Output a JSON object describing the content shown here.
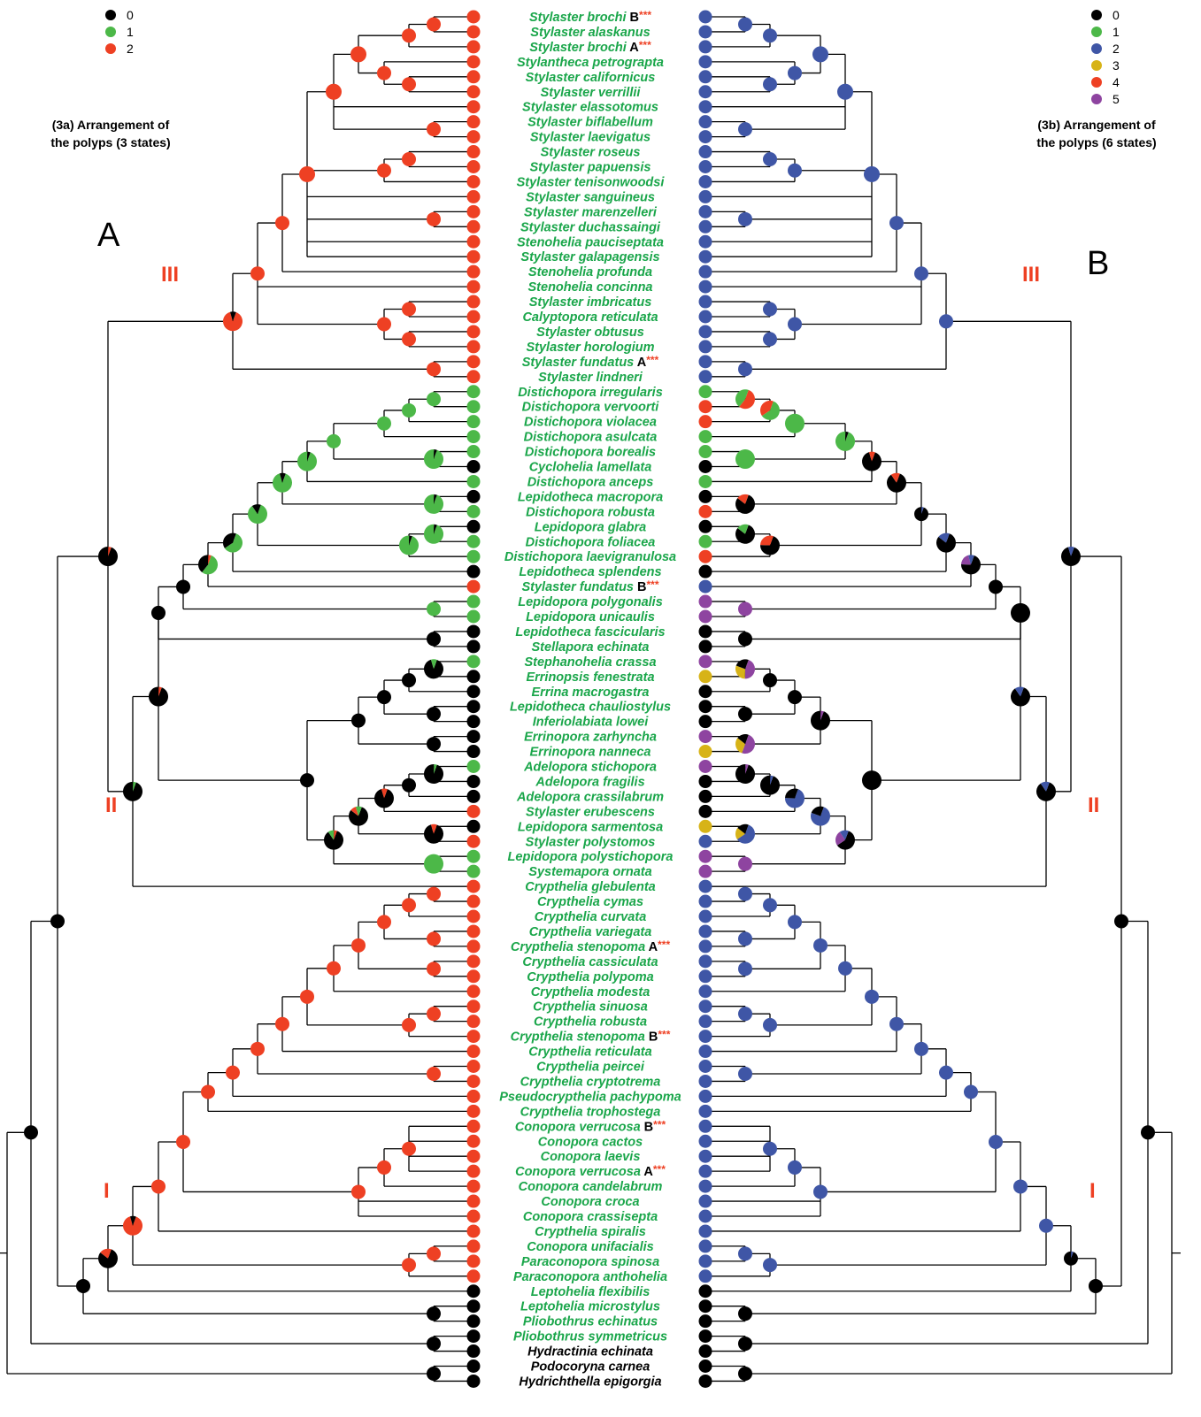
{
  "state_colors": {
    "0": "#000000",
    "1": "#4cb848",
    "2": "#ee4023",
    "3b": "#3f56a6",
    "3": "#d7b317",
    "4": "#ee4023",
    "5": "#8e44a0"
  },
  "left_panel": {
    "letter": "A",
    "caption_line1": "(3a) Arrangement of",
    "caption_line2": "the polyps (3 states)",
    "legend": [
      {
        "label": "0",
        "color": "#000000"
      },
      {
        "label": "1",
        "color": "#4cb848"
      },
      {
        "label": "2",
        "color": "#ee4023"
      }
    ],
    "clade_labels": [
      "III",
      "II",
      "I"
    ]
  },
  "right_panel": {
    "letter": "B",
    "caption_line1": "(3b) Arrangement of",
    "caption_line2": "the polyps (6 states)",
    "legend": [
      {
        "label": "0",
        "color": "#000000"
      },
      {
        "label": "1",
        "color": "#4cb848"
      },
      {
        "label": "2",
        "color": "#3f56a6"
      },
      {
        "label": "3",
        "color": "#d7b317"
      },
      {
        "label": "4",
        "color": "#ee4023"
      },
      {
        "label": "5",
        "color": "#8e44a0"
      }
    ],
    "clade_labels": [
      "III",
      "II",
      "I"
    ]
  },
  "taxa": [
    {
      "name": "Stylaster brochi",
      "suffix": "B",
      "stars": "***",
      "left": 2,
      "right": 2,
      "green": true
    },
    {
      "name": "Stylaster alaskanus",
      "left": 2,
      "right": 2,
      "green": true
    },
    {
      "name": "Stylaster brochi",
      "suffix": "A",
      "stars": "***",
      "left": 2,
      "right": 2,
      "green": true
    },
    {
      "name": "Stylantheca petrograpta",
      "left": 2,
      "right": 2,
      "green": true
    },
    {
      "name": "Stylaster californicus",
      "left": 2,
      "right": 2,
      "green": true
    },
    {
      "name": "Stylaster verrillii",
      "left": 2,
      "right": 2,
      "green": true
    },
    {
      "name": "Stylaster elassotomus",
      "left": 2,
      "right": 2,
      "green": true
    },
    {
      "name": "Stylaster biflabellum",
      "left": 2,
      "right": 2,
      "green": true
    },
    {
      "name": "Stylaster laevigatus",
      "left": 2,
      "right": 2,
      "green": true
    },
    {
      "name": "Stylaster roseus",
      "left": 2,
      "right": 2,
      "green": true
    },
    {
      "name": "Stylaster papuensis",
      "left": 2,
      "right": 2,
      "green": true
    },
    {
      "name": "Stylaster tenisonwoodsi",
      "left": 2,
      "right": 2,
      "green": true
    },
    {
      "name": "Stylaster sanguineus",
      "left": 2,
      "right": 2,
      "green": true
    },
    {
      "name": "Stylaster marenzelleri",
      "left": 2,
      "right": 2,
      "green": true
    },
    {
      "name": "Stylaster duchassaingi",
      "left": 2,
      "right": 2,
      "green": true
    },
    {
      "name": "Stenohelia pauciseptata",
      "left": 2,
      "right": 2,
      "green": true
    },
    {
      "name": "Stylaster galapagensis",
      "left": 2,
      "right": 2,
      "green": true
    },
    {
      "name": "Stenohelia profunda",
      "left": 2,
      "right": 2,
      "green": true
    },
    {
      "name": "Stenohelia concinna",
      "left": 2,
      "right": 2,
      "green": true
    },
    {
      "name": "Stylaster imbricatus",
      "left": 2,
      "right": 2,
      "green": true
    },
    {
      "name": "Calyptopora reticulata",
      "left": 2,
      "right": 2,
      "green": true
    },
    {
      "name": "Stylaster obtusus",
      "left": 2,
      "right": 2,
      "green": true
    },
    {
      "name": "Stylaster horologium",
      "left": 2,
      "right": 2,
      "green": true
    },
    {
      "name": "Stylaster fundatus",
      "suffix": "A",
      "stars": "***",
      "left": 2,
      "right": 2,
      "green": true
    },
    {
      "name": "Stylaster lindneri",
      "left": 2,
      "right": 2,
      "green": true
    },
    {
      "name": "Distichopora irregularis",
      "left": 1,
      "right": 1,
      "green": true
    },
    {
      "name": "Distichopora vervoorti",
      "left": 1,
      "right": 4,
      "green": true
    },
    {
      "name": "Distichopora violacea",
      "left": 1,
      "right": 4,
      "green": true
    },
    {
      "name": "Distichopora asulcata",
      "left": 1,
      "right": 1,
      "green": true
    },
    {
      "name": "Distichopora borealis",
      "left": 1,
      "right": 1,
      "green": true
    },
    {
      "name": "Cyclohelia lamellata",
      "left": 0,
      "right": 0,
      "green": true
    },
    {
      "name": "Distichopora anceps",
      "left": 1,
      "right": 1,
      "green": true
    },
    {
      "name": "Lepidotheca macropora",
      "left": 0,
      "right": 0,
      "green": true
    },
    {
      "name": "Distichopora robusta",
      "left": 1,
      "right": 4,
      "green": true
    },
    {
      "name": "Lepidopora glabra",
      "left": 0,
      "right": 0,
      "green": true
    },
    {
      "name": "Distichopora foliacea",
      "left": 1,
      "right": 1,
      "green": true
    },
    {
      "name": "Distichopora laevigranulosa",
      "left": 1,
      "right": 4,
      "green": true
    },
    {
      "name": "Lepidotheca splendens",
      "left": 0,
      "right": 0,
      "green": true
    },
    {
      "name": "Stylaster fundatus",
      "suffix": "B",
      "stars": "***",
      "left": 2,
      "right": 2,
      "green": true
    },
    {
      "name": "Lepidopora polygonalis",
      "left": 1,
      "right": 5,
      "green": true
    },
    {
      "name": "Lepidopora unicaulis",
      "left": 1,
      "right": 5,
      "green": true
    },
    {
      "name": "Lepidotheca fascicularis",
      "left": 0,
      "right": 0,
      "green": true
    },
    {
      "name": "Stellapora echinata",
      "left": 0,
      "right": 0,
      "green": true
    },
    {
      "name": "Stephanohelia crassa",
      "left": 1,
      "right": 5,
      "green": true
    },
    {
      "name": "Errinopsis fenestrata",
      "left": 0,
      "right": 3,
      "green": true
    },
    {
      "name": "Errina macrogastra",
      "left": 0,
      "right": 0,
      "green": true
    },
    {
      "name": "Lepidotheca chauliostylus",
      "left": 0,
      "right": 0,
      "green": true
    },
    {
      "name": "Inferiolabiata lowei",
      "left": 0,
      "right": 0,
      "green": true
    },
    {
      "name": "Errinopora zarhyncha",
      "left": 0,
      "right": 5,
      "green": true
    },
    {
      "name": "Errinopora nanneca",
      "left": 0,
      "right": 3,
      "green": true
    },
    {
      "name": "Adelopora stichopora",
      "left": 1,
      "right": 5,
      "green": true
    },
    {
      "name": "Adelopora fragilis",
      "left": 0,
      "right": 0,
      "green": true
    },
    {
      "name": "Adelopora crassilabrum",
      "left": 0,
      "right": 0,
      "green": true
    },
    {
      "name": "Stylaster erubescens",
      "left": 2,
      "right": 0,
      "green": true
    },
    {
      "name": "Lepidopora sarmentosa",
      "left": 0,
      "right": 3,
      "green": true
    },
    {
      "name": "Stylaster polystomos",
      "left": 2,
      "right": 2,
      "green": true
    },
    {
      "name": "Lepidopora polystichopora",
      "left": 1,
      "right": 5,
      "green": true
    },
    {
      "name": "Systemapora ornata",
      "left": 1,
      "right": 5,
      "green": true
    },
    {
      "name": "Crypthelia glebulenta",
      "left": 2,
      "right": 2,
      "green": true
    },
    {
      "name": "Crypthelia cymas",
      "left": 2,
      "right": 2,
      "green": true
    },
    {
      "name": "Crypthelia curvata",
      "left": 2,
      "right": 2,
      "green": true
    },
    {
      "name": "Crypthelia variegata",
      "left": 2,
      "right": 2,
      "green": true
    },
    {
      "name": "Crypthelia stenopoma",
      "suffix": "A",
      "stars": "***",
      "left": 2,
      "right": 2,
      "green": true
    },
    {
      "name": "Crypthelia cassiculata",
      "left": 2,
      "right": 2,
      "green": true
    },
    {
      "name": "Crypthelia polypoma",
      "left": 2,
      "right": 2,
      "green": true
    },
    {
      "name": "Crypthelia modesta",
      "left": 2,
      "right": 2,
      "green": true
    },
    {
      "name": "Crypthelia sinuosa",
      "left": 2,
      "right": 2,
      "green": true
    },
    {
      "name": "Crypthelia robusta",
      "left": 2,
      "right": 2,
      "green": true
    },
    {
      "name": "Crypthelia stenopoma",
      "suffix": "B",
      "stars": "***",
      "left": 2,
      "right": 2,
      "green": true
    },
    {
      "name": "Crypthelia reticulata",
      "left": 2,
      "right": 2,
      "green": true
    },
    {
      "name": "Crypthelia peircei",
      "left": 2,
      "right": 2,
      "green": true
    },
    {
      "name": "Crypthelia cryptotrema",
      "left": 2,
      "right": 2,
      "green": true
    },
    {
      "name": "Pseudocrypthelia pachypoma",
      "left": 2,
      "right": 2,
      "green": true
    },
    {
      "name": "Crypthelia trophostega",
      "left": 2,
      "right": 2,
      "green": true
    },
    {
      "name": "Conopora verrucosa",
      "suffix": "B",
      "stars": "***",
      "left": 2,
      "right": 2,
      "green": true
    },
    {
      "name": "Conopora cactos",
      "left": 2,
      "right": 2,
      "green": true
    },
    {
      "name": "Conopora laevis",
      "left": 2,
      "right": 2,
      "green": true
    },
    {
      "name": "Conopora verrucosa",
      "suffix": "A",
      "stars": "***",
      "left": 2,
      "right": 2,
      "green": true
    },
    {
      "name": "Conopora candelabrum",
      "left": 2,
      "right": 2,
      "green": true
    },
    {
      "name": "Conopora croca",
      "left": 2,
      "right": 2,
      "green": true
    },
    {
      "name": "Conopora crassisepta",
      "left": 2,
      "right": 2,
      "green": true
    },
    {
      "name": "Crypthelia spiralis",
      "left": 2,
      "right": 2,
      "green": true
    },
    {
      "name": "Conopora unifacialis",
      "left": 2,
      "right": 2,
      "green": true
    },
    {
      "name": "Paraconopora spinosa",
      "left": 2,
      "right": 2,
      "green": true
    },
    {
      "name": "Paraconopora anthohelia",
      "left": 2,
      "right": 2,
      "green": true
    },
    {
      "name": "Leptohelia flexibilis",
      "left": 0,
      "right": 0,
      "green": true
    },
    {
      "name": "Leptohelia microstylus",
      "left": 0,
      "right": 0,
      "green": true
    },
    {
      "name": "Pliobothrus echinatus",
      "left": 0,
      "right": 0,
      "green": true
    },
    {
      "name": "Pliobothrus symmetricus",
      "left": 0,
      "right": 0,
      "green": true
    },
    {
      "name": "Hydractinia echinata",
      "left": 0,
      "right": 0,
      "green": false
    },
    {
      "name": "Podocoryna carnea",
      "left": 0,
      "right": 0,
      "green": false
    },
    {
      "name": "Hydrichthella epigorgia",
      "left": 0,
      "right": 0,
      "green": false
    }
  ]
}
